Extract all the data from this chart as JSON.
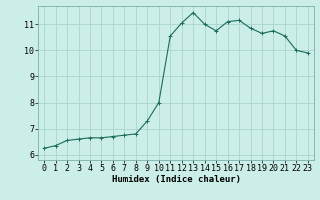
{
  "x": [
    0,
    1,
    2,
    3,
    4,
    5,
    6,
    7,
    8,
    9,
    10,
    11,
    12,
    13,
    14,
    15,
    16,
    17,
    18,
    19,
    20,
    21,
    22,
    23
  ],
  "y": [
    6.25,
    6.35,
    6.55,
    6.6,
    6.65,
    6.65,
    6.7,
    6.75,
    6.8,
    7.3,
    8.0,
    10.55,
    11.05,
    11.45,
    11.0,
    10.75,
    11.1,
    11.15,
    10.85,
    10.65,
    10.75,
    10.55,
    10.0,
    9.9
  ],
  "line_color": "#1a6b5a",
  "marker": "+",
  "marker_size": 2.5,
  "marker_edge_width": 0.7,
  "line_width": 0.8,
  "background_color": "#cceee8",
  "grid_color": "#aad4ce",
  "xlabel": "Humidex (Indice chaleur)",
  "xlim": [
    -0.5,
    23.5
  ],
  "ylim": [
    5.8,
    11.7
  ],
  "yticks": [
    6,
    7,
    8,
    9,
    10,
    11
  ],
  "xticks": [
    0,
    1,
    2,
    3,
    4,
    5,
    6,
    7,
    8,
    9,
    10,
    11,
    12,
    13,
    14,
    15,
    16,
    17,
    18,
    19,
    20,
    21,
    22,
    23
  ],
  "xlabel_fontsize": 6.5,
  "tick_fontsize": 6.0,
  "spine_color": "#7ab0aa"
}
